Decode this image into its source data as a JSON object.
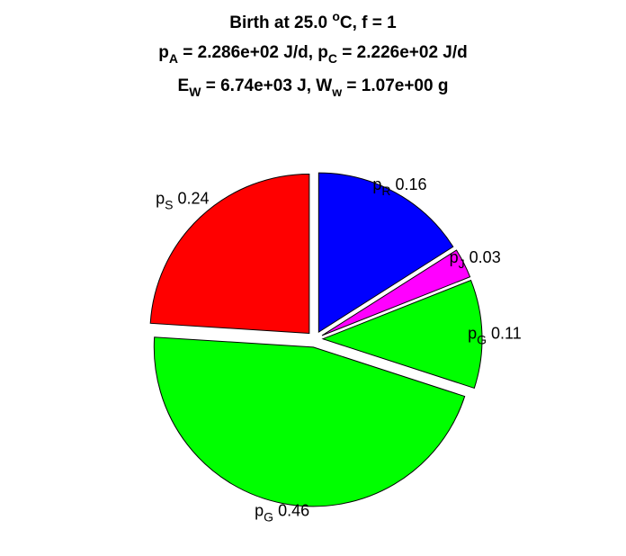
{
  "title": {
    "line1": {
      "pre": "Birth at 25.0 ",
      "sup": "o",
      "post": "C, f = 1"
    },
    "line2": [
      {
        "base": "p",
        "sub": "A",
        "rest": " = 2.286e+02 J/d, "
      },
      {
        "base": "p",
        "sub": "C",
        "rest": " = 2.226e+02 J/d"
      }
    ],
    "line3": [
      {
        "base": "E",
        "sub": "W",
        "rest": " = 6.74e+03 J, "
      },
      {
        "base": "W",
        "sub": "w",
        "rest": " = 1.07e+00 g"
      }
    ]
  },
  "chart_data": {
    "type": "pie",
    "slices": [
      {
        "label": "p",
        "sub": "R",
        "value": 0.16,
        "color": "#0000ff"
      },
      {
        "label": "p",
        "sub": "J",
        "value": 0.03,
        "color": "#ff00ff"
      },
      {
        "label": "p",
        "sub": "G",
        "value": 0.11,
        "color": "#00ff00"
      },
      {
        "label": "p",
        "sub": "G",
        "value": 0.46,
        "color": "#00ff00"
      },
      {
        "label": "p",
        "sub": "S",
        "value": 0.24,
        "color": "#ff0000"
      }
    ],
    "exploded": [
      true,
      true,
      true,
      true,
      true
    ],
    "start_angle": "12 o'clock",
    "direction": "clockwise"
  }
}
